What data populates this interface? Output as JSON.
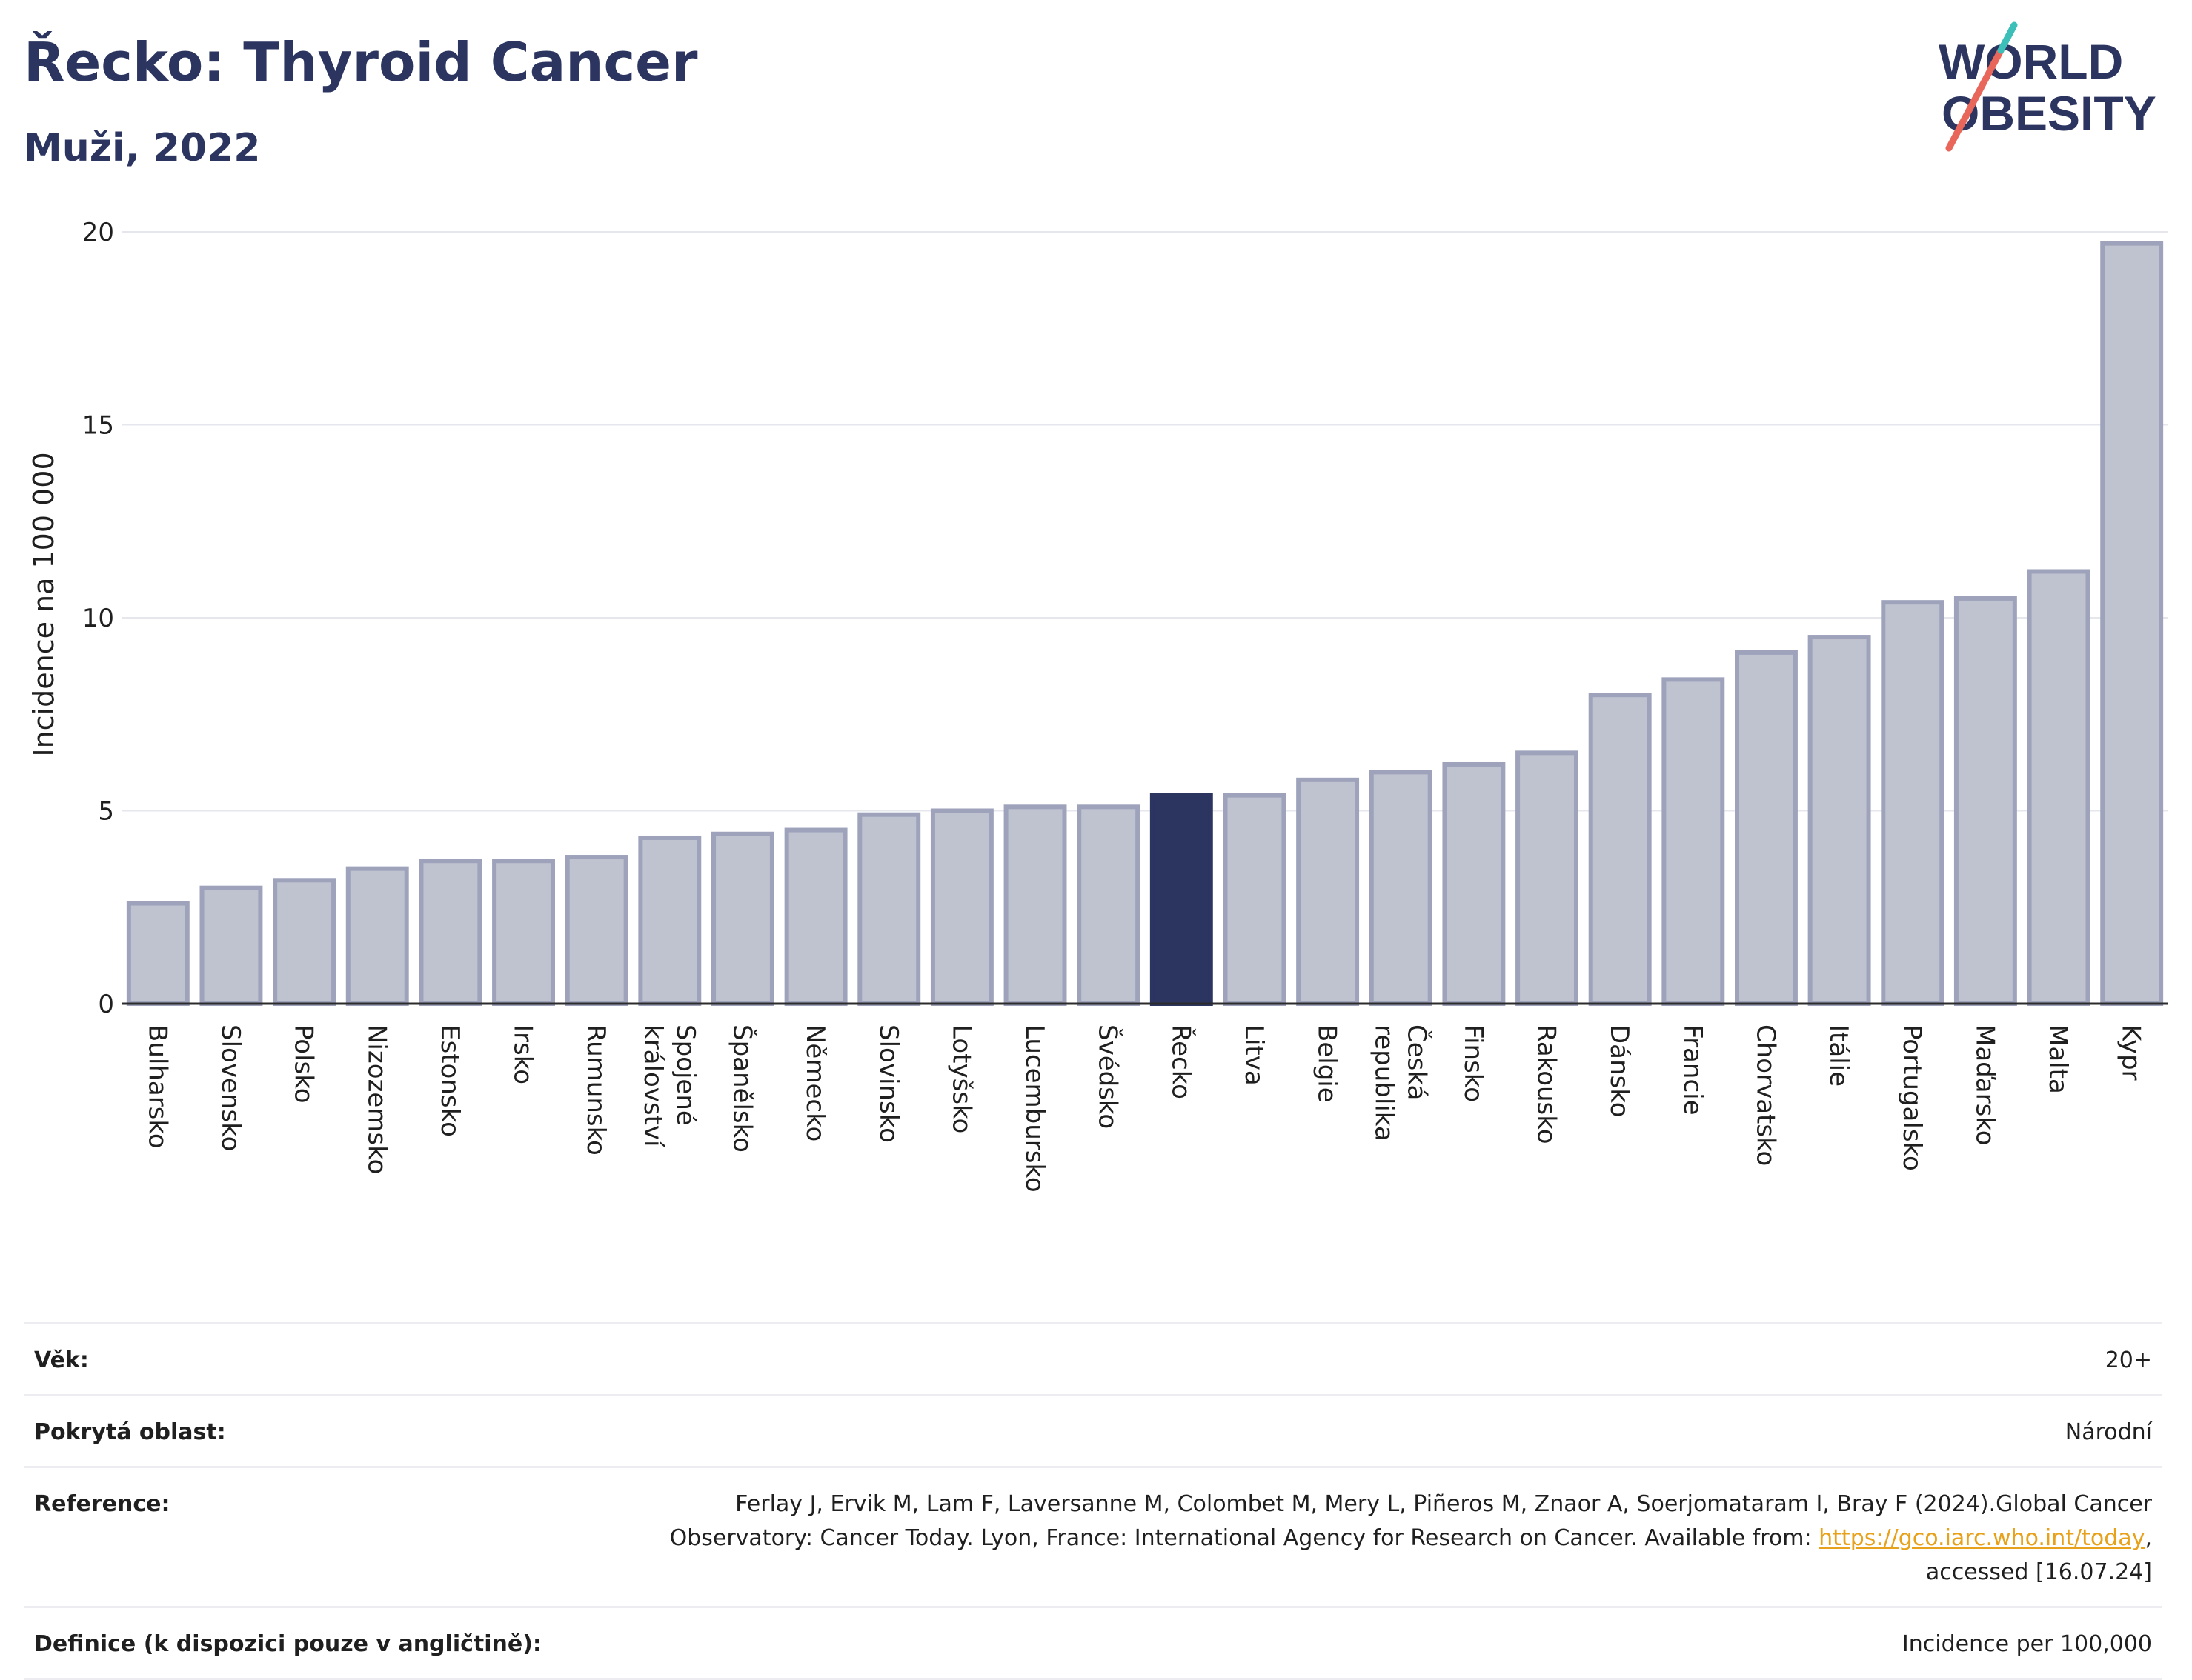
{
  "header": {
    "title": "Řecko: Thyroid Cancer",
    "subtitle": "Muži, 2022",
    "logo": {
      "line1": "WORLD",
      "line2": "OBESITY",
      "accent_colors": [
        "#e8665a",
        "#3bbfb8"
      ]
    }
  },
  "colors": {
    "bar": "#bfc2cf",
    "bar_border": "#9ea3bb",
    "highlight": "#2b3560",
    "grid": "#e6e7ec",
    "axis": "#2b2b2b"
  },
  "chart_data": {
    "type": "bar",
    "ylabel": "Incidence na 100 000",
    "ylim": [
      0,
      20
    ],
    "yticks": [
      0,
      5,
      10,
      15,
      20
    ],
    "grid": true,
    "highlight_category": "Řecko",
    "categories": [
      "Bulharsko",
      "Slovensko",
      "Polsko",
      "Nizozemsko",
      "Estonsko",
      "Irsko",
      "Rumunsko",
      "Spojené království",
      "Španělsko",
      "Německo",
      "Slovinsko",
      "Lotyšsko",
      "Lucembursko",
      "Švédsko",
      "Řecko",
      "Litva",
      "Belgie",
      "Česká republika",
      "Finsko",
      "Rakousko",
      "Dánsko",
      "Francie",
      "Chorvatsko",
      "Itálie",
      "Portugalsko",
      "Maďarsko",
      "Malta",
      "Kypr"
    ],
    "values": [
      2.6,
      3.0,
      3.2,
      3.5,
      3.7,
      3.7,
      3.8,
      4.3,
      4.4,
      4.5,
      4.9,
      5.0,
      5.1,
      5.1,
      5.4,
      5.4,
      5.8,
      6.0,
      6.2,
      6.5,
      8.0,
      8.4,
      9.1,
      9.5,
      10.4,
      10.5,
      11.2,
      19.7
    ]
  },
  "info": {
    "age": {
      "label": "Věk:",
      "value": "20+"
    },
    "coverage": {
      "label": "Pokrytá oblast:",
      "value": "Národní"
    },
    "reference": {
      "label": "Reference:",
      "line1": "Ferlay J, Ervik M, Lam F, Laversanne M, Colombet M, Mery L, Piñeros M, Znaor A, Soerjomataram I, Bray F (2024).Global Cancer",
      "line2_prefix": "Observatory: Cancer Today. Lyon, France: International Agency for Research on Cancer. Available from: ",
      "link": "https://gco.iarc.who.int/today",
      "line2_suffix": ",",
      "line3": "accessed [16.07.24]"
    },
    "definition": {
      "label": "Definice (k dispozici pouze v angličtině):",
      "value": "Incidence per 100,000"
    }
  }
}
